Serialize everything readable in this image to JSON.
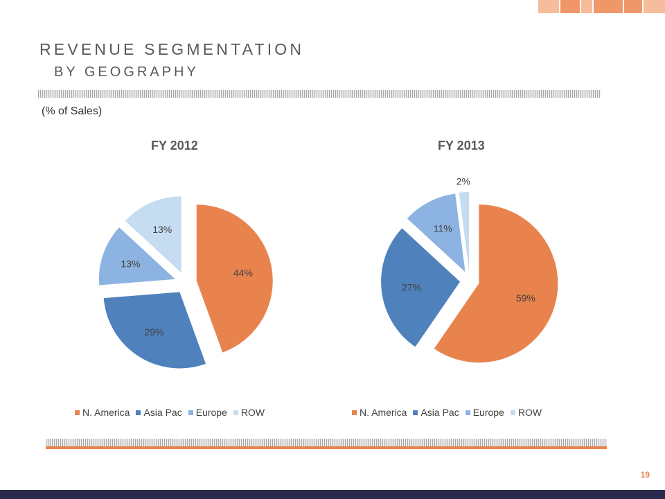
{
  "header": {
    "title": "REVENUE SEGMENTATION",
    "subtitle": "BY GEOGRAPHY",
    "note": "(% of Sales)"
  },
  "colors": {
    "N. America": "#e8834e",
    "Asia Pac": "#4f81bd",
    "Europe": "#8db3e2",
    "ROW": "#c5dcf1",
    "accent": "#e8834e",
    "footer": "#2b2a4c"
  },
  "page_number": "19",
  "chart_data": [
    {
      "type": "pie",
      "title": "FY 2012",
      "categories": [
        "N. America",
        "Asia Pac",
        "Europe",
        "ROW"
      ],
      "values": [
        44,
        29,
        13,
        13
      ],
      "labels": [
        "44%",
        "29%",
        "13%",
        "13%"
      ],
      "exploded": true,
      "legend": "bottom"
    },
    {
      "type": "pie",
      "title": "FY 2013",
      "categories": [
        "N. America",
        "Asia Pac",
        "Europe",
        "ROW"
      ],
      "values": [
        59,
        27,
        11,
        2
      ],
      "labels": [
        "59%",
        "27%",
        "11%",
        "2%"
      ],
      "exploded": true,
      "legend": "bottom"
    }
  ]
}
